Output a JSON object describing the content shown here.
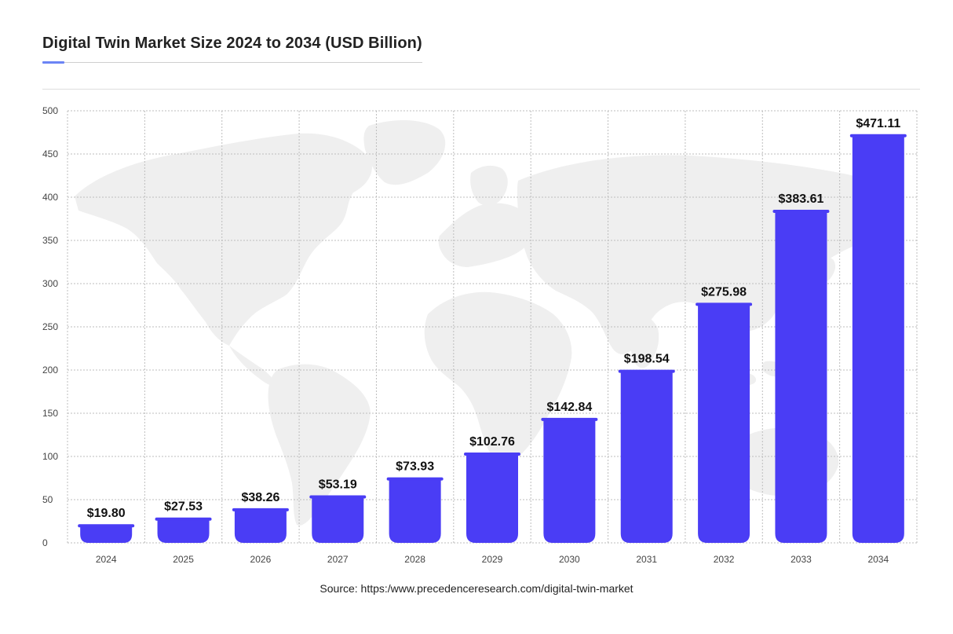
{
  "title": "Digital Twin Market Size 2024 to 2034 (USD Billion)",
  "source": "Source: https:/www.precedenceresearch.com/digital-twin-market",
  "colors": {
    "bar": "#4a3df5",
    "grid": "#bdbdbd",
    "accent": "#6b84f5",
    "map": "#efefef"
  },
  "chart_data": {
    "type": "bar",
    "title": "Digital Twin Market Size 2024 to 2034 (USD Billion)",
    "xlabel": "",
    "ylabel": "",
    "categories": [
      "2024",
      "2025",
      "2026",
      "2027",
      "2028",
      "2029",
      "2030",
      "2031",
      "2032",
      "2033",
      "2034"
    ],
    "values": [
      19.8,
      27.53,
      38.26,
      53.19,
      73.93,
      102.76,
      142.84,
      198.54,
      275.98,
      383.61,
      471.11
    ],
    "value_labels": [
      "$19.80",
      "$27.53",
      "$38.26",
      "$53.19",
      "$73.93",
      "$102.76",
      "$142.84",
      "$198.54",
      "$275.98",
      "$383.61",
      "$471.11"
    ],
    "ylim": [
      0,
      500
    ],
    "yticks": [
      0,
      50,
      100,
      150,
      200,
      250,
      300,
      350,
      400,
      450,
      500
    ],
    "grid": true,
    "legend": "none"
  }
}
